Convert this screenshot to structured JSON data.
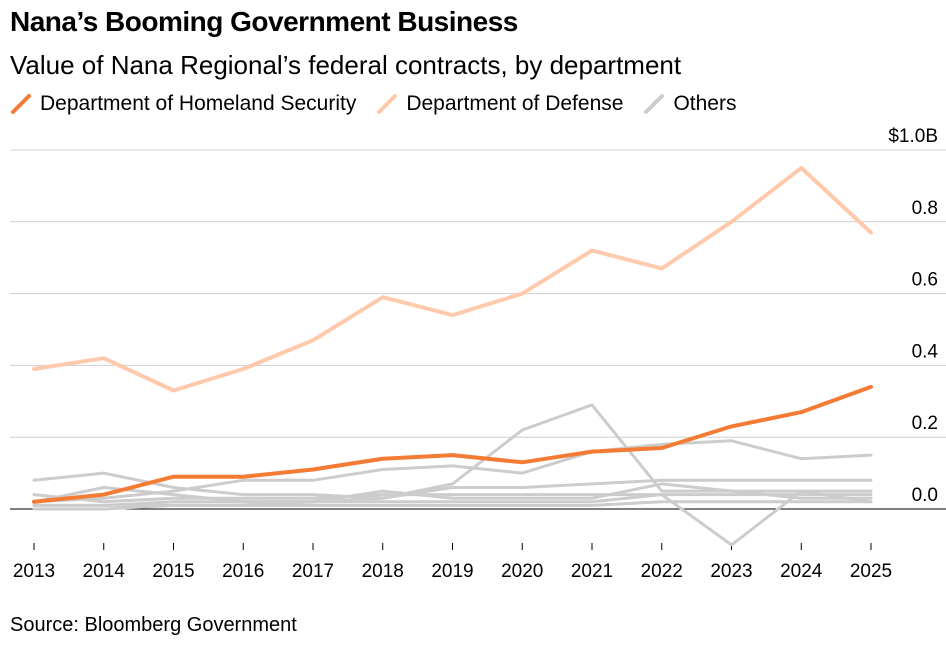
{
  "chart_data": {
    "type": "line",
    "title": "Nana’s Booming Government Business",
    "subtitle": "Value of Nana Regional’s federal contracts, by department",
    "source": "Source: Bloomberg Government",
    "x": [
      "2013",
      "2014",
      "2015",
      "2016",
      "2017",
      "2018",
      "2019",
      "2020",
      "2021",
      "2022",
      "2023",
      "2024",
      "2025"
    ],
    "y_ticks": [
      {
        "value": 1.0,
        "label": "$1.0B"
      },
      {
        "value": 0.8,
        "label": "0.8"
      },
      {
        "value": 0.6,
        "label": "0.6"
      },
      {
        "value": 0.4,
        "label": "0.4"
      },
      {
        "value": 0.2,
        "label": "0.2"
      },
      {
        "value": 0.0,
        "label": "0.0"
      }
    ],
    "ylim": [
      -0.1,
      1.0
    ],
    "grid": true,
    "series": [
      {
        "name": "Others",
        "group": "others",
        "color": "#cccccc",
        "values": [
          0.08,
          0.1,
          0.06,
          0.04,
          0.04,
          0.03,
          0.07,
          0.22,
          0.29,
          0.05,
          0.05,
          0.03,
          0.03
        ]
      },
      {
        "name": "Others",
        "group": "others",
        "color": "#cccccc",
        "values": [
          0.02,
          0.03,
          0.05,
          0.08,
          0.08,
          0.11,
          0.12,
          0.1,
          0.16,
          0.18,
          0.19,
          0.14,
          0.15
        ]
      },
      {
        "name": "Others",
        "group": "others",
        "color": "#cccccc",
        "values": [
          0.01,
          0.01,
          0.02,
          0.02,
          0.02,
          0.03,
          0.06,
          0.06,
          0.07,
          0.08,
          0.08,
          0.08,
          0.08
        ]
      },
      {
        "name": "Others",
        "group": "others",
        "color": "#cccccc",
        "values": [
          0.04,
          0.02,
          0.03,
          0.03,
          0.03,
          0.04,
          0.04,
          0.04,
          0.04,
          0.04,
          0.04,
          0.04,
          0.04
        ]
      },
      {
        "name": "Others",
        "group": "others",
        "color": "#cccccc",
        "values": [
          0.02,
          0.06,
          0.04,
          0.02,
          0.02,
          0.05,
          0.03,
          0.03,
          0.03,
          0.07,
          0.05,
          0.05,
          0.05
        ]
      },
      {
        "name": "Others",
        "group": "others",
        "color": "#cccccc",
        "values": [
          0.01,
          0.01,
          0.01,
          0.01,
          0.02,
          0.02,
          0.02,
          0.02,
          0.02,
          0.04,
          -0.1,
          0.05,
          0.02
        ]
      },
      {
        "name": "Others",
        "group": "others",
        "color": "#cccccc",
        "values": [
          0.0,
          0.0,
          0.01,
          0.01,
          0.01,
          0.01,
          0.01,
          0.01,
          0.01,
          0.02,
          0.02,
          0.02,
          0.02
        ]
      },
      {
        "name": "Department of Defense",
        "group": "defense",
        "color": "#ffc9ab",
        "values": [
          0.39,
          0.42,
          0.33,
          0.39,
          0.47,
          0.59,
          0.54,
          0.6,
          0.72,
          0.67,
          0.8,
          0.95,
          0.77
        ]
      },
      {
        "name": "Department of Homeland Security",
        "group": "dhs",
        "color": "#f47b34",
        "values": [
          0.02,
          0.04,
          0.09,
          0.09,
          0.11,
          0.14,
          0.15,
          0.13,
          0.16,
          0.17,
          0.23,
          0.27,
          0.34
        ]
      }
    ],
    "legend": [
      {
        "label": "Department of Homeland Security",
        "color": "#f47b34"
      },
      {
        "label": "Department of Defense",
        "color": "#ffc9ab"
      },
      {
        "label": "Others",
        "color": "#cccccc"
      }
    ]
  }
}
